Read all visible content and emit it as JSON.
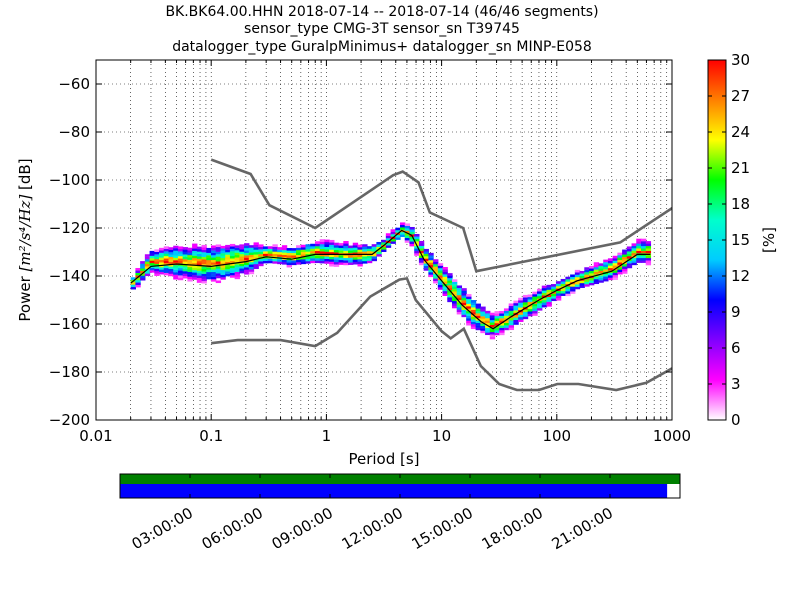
{
  "title_lines": [
    "BK.BK64.00.HHN   2018-07-14 -- 2018-07-14  (46/46 segments)",
    "sensor_type CMG-3T sensor_sn T39745",
    "datalogger_type GuralpMinimus+ datalogger_sn MINP-E058"
  ],
  "chart_data": [
    {
      "type": "heatmap",
      "xlabel": "Period [s]",
      "ylabel_prefix": "Power ",
      "ylabel_math": "[m²/s⁴/Hz]",
      "ylabel_suffix": " [dB]",
      "xscale": "log",
      "xlim": [
        0.01,
        1000
      ],
      "ylim": [
        -200,
        -50
      ],
      "x_ticks": [
        0.01,
        0.1,
        1,
        10,
        100,
        1000
      ],
      "x_tick_labels": [
        "0.01",
        "0.1",
        "1",
        "10",
        "100",
        "1000"
      ],
      "y_ticks": [
        -200,
        -180,
        -160,
        -140,
        -120,
        -100,
        -80,
        -60
      ],
      "y_tick_labels": [
        "−200",
        "−180",
        "−160",
        "−140",
        "−120",
        "−100",
        "−80",
        "−60"
      ],
      "grid": true,
      "colorbar": {
        "label": "[%]",
        "range": [
          0,
          30
        ],
        "ticks": [
          0,
          3,
          6,
          9,
          12,
          15,
          18,
          21,
          24,
          27,
          30
        ]
      },
      "noise_models": [
        {
          "name": "upper",
          "points": [
            [
              0.1,
              -91.5
            ],
            [
              0.22,
              -97.5
            ],
            [
              0.32,
              -110.5
            ],
            [
              0.8,
              -120
            ],
            [
              3.8,
              -98
            ],
            [
              4.6,
              -96.5
            ],
            [
              6.3,
              -101
            ],
            [
              7.9,
              -113.5
            ],
            [
              15.4,
              -120
            ],
            [
              20,
              -138
            ],
            [
              354.8,
              -126
            ],
            [
              10000,
              -80
            ]
          ]
        },
        {
          "name": "lower",
          "points": [
            [
              0.1,
              -168
            ],
            [
              0.17,
              -166.7
            ],
            [
              0.4,
              -166.7
            ],
            [
              0.8,
              -169.2
            ],
            [
              1.24,
              -163.7
            ],
            [
              2.4,
              -148.6
            ],
            [
              4.3,
              -141.5
            ],
            [
              5,
              -141
            ],
            [
              5.96,
              -150
            ],
            [
              10,
              -163
            ],
            [
              12,
              -166
            ],
            [
              15.6,
              -162
            ],
            [
              21.9,
              -177.5
            ],
            [
              31.6,
              -185
            ],
            [
              45,
              -187.5
            ],
            [
              70,
              -187.5
            ],
            [
              101,
              -185
            ],
            [
              154,
              -185
            ],
            [
              328,
              -187.5
            ],
            [
              600,
              -184.5
            ],
            [
              1000,
              -178.5
            ]
          ]
        }
      ],
      "median": {
        "points": [
          [
            0.02,
            -143
          ],
          [
            0.03,
            -136
          ],
          [
            0.05,
            -135
          ],
          [
            0.1,
            -136
          ],
          [
            0.2,
            -134
          ],
          [
            0.3,
            -132
          ],
          [
            0.5,
            -133
          ],
          [
            0.8,
            -131
          ],
          [
            1.5,
            -131
          ],
          [
            2.5,
            -131
          ],
          [
            3.2,
            -127
          ],
          [
            4.5,
            -121
          ],
          [
            5.5,
            -123
          ],
          [
            7,
            -133
          ],
          [
            10,
            -142
          ],
          [
            15,
            -152
          ],
          [
            22,
            -159
          ],
          [
            28,
            -162
          ],
          [
            40,
            -157
          ],
          [
            70,
            -150
          ],
          [
            100,
            -146
          ],
          [
            150,
            -142
          ],
          [
            300,
            -138
          ],
          [
            500,
            -131
          ],
          [
            650,
            -131
          ]
        ]
      },
      "psd_band": {
        "points": [
          [
            0.02,
            -144,
            2
          ],
          [
            0.03,
            -134,
            4
          ],
          [
            0.05,
            -134,
            6
          ],
          [
            0.1,
            -135,
            7
          ],
          [
            0.2,
            -133,
            6
          ],
          [
            0.3,
            -131,
            3
          ],
          [
            0.5,
            -132,
            3
          ],
          [
            0.8,
            -130,
            4
          ],
          [
            1.5,
            -131,
            4
          ],
          [
            2.5,
            -131,
            3
          ],
          [
            3.2,
            -127,
            2
          ],
          [
            4.5,
            -121,
            2
          ],
          [
            5.5,
            -123,
            3
          ],
          [
            7,
            -132,
            4
          ],
          [
            10,
            -141,
            5
          ],
          [
            15,
            -151,
            6
          ],
          [
            22,
            -158,
            5
          ],
          [
            28,
            -161,
            4
          ],
          [
            40,
            -157,
            4
          ],
          [
            70,
            -150,
            4
          ],
          [
            100,
            -146,
            3
          ],
          [
            150,
            -142,
            3
          ],
          [
            300,
            -137,
            4
          ],
          [
            500,
            -130,
            4
          ],
          [
            650,
            -130,
            4
          ]
        ]
      }
    },
    {
      "type": "table",
      "name": "data availability",
      "time_tick_labels": [
        "03:00:00",
        "06:00:00",
        "09:00:00",
        "12:00:00",
        "15:00:00",
        "18:00:00",
        "21:00:00"
      ],
      "data_coverage": 1.0,
      "psd_coverage": 0.977
    }
  ],
  "colors": {
    "noise_model": "#666666",
    "median": "#000000",
    "coverage_data": "#008000",
    "coverage_psd": "#0000ff",
    "colormap": [
      "#ffffff",
      "#ff00ff",
      "#8000ff",
      "#0000ff",
      "#00ccff",
      "#00ffcc",
      "#00ff00",
      "#ffff00",
      "#ff8000",
      "#ff0000"
    ]
  }
}
